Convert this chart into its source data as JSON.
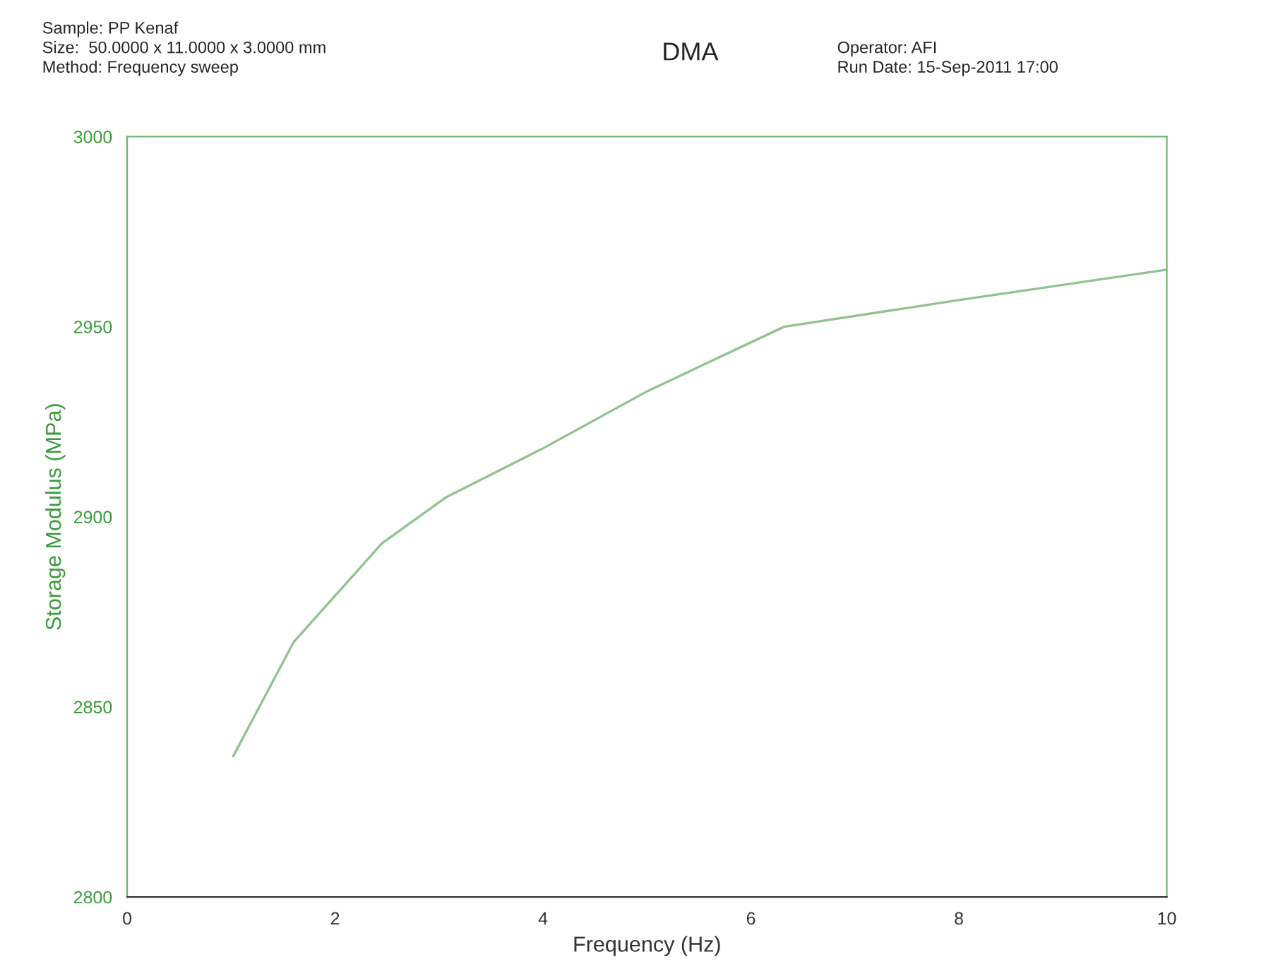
{
  "chart_data": {
    "type": "line",
    "title": "DMA",
    "xlabel": "Frequency (Hz)",
    "ylabel": "Storage Modulus (MPa)",
    "annotations": [
      "Sample: PP Kenaf",
      "Size:  50.0000 x 11.0000 x 3.0000 mm",
      "Method: Frequency sweep",
      "Operator: AFI",
      "Run Date: 15-Sep-2011 17:00"
    ],
    "series": [
      {
        "color": "#8fc48f",
        "x": [
          1.02,
          1.6,
          2.45,
          3.06,
          4.0,
          5.0,
          6.32,
          8.0,
          10.0
        ],
        "values": [
          2837,
          2867,
          2893,
          2905,
          2918,
          2933,
          2950,
          2957,
          2965
        ]
      }
    ],
    "xlim": [
      0,
      10
    ],
    "xticks": [
      0,
      2,
      4,
      6,
      8,
      10
    ],
    "ylim": [
      2800,
      3000
    ],
    "yticks": [
      2800,
      2850,
      2900,
      2950,
      3000
    ],
    "grid": false,
    "legend": false,
    "marker": "none",
    "line_style": "solid"
  }
}
